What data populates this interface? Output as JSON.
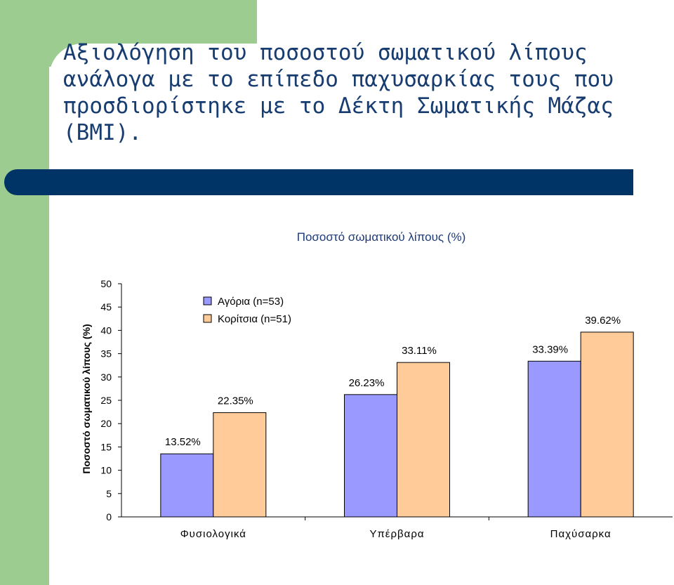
{
  "slide": {
    "title": "Αξιολόγηση του ποσοστού σωματικού λίπους ανάλογα με το επίπεδο παχυσαρκίας τους που προσδιορίστηκε με το Δέκτη Σωματικής Μάζας (BMI)."
  },
  "colors": {
    "background_strip": "#9ccc90",
    "title_text": "#173c70",
    "accent_bar": "#003366",
    "boys": "#9999ff",
    "girls": "#ffcc99"
  },
  "chart_data": {
    "type": "bar",
    "title": "Ποσοστό σωματικού λίπους (%)",
    "xlabel": "",
    "ylabel": "Ποσοστό σωματικού λίπους (%)",
    "ylim": [
      0,
      50
    ],
    "yticks": [
      0,
      5,
      10,
      15,
      20,
      25,
      30,
      35,
      40,
      45,
      50
    ],
    "categories": [
      "Φυσιολογικά",
      "Υπέρβαρα",
      "Παχύσαρκα"
    ],
    "series": [
      {
        "name": "Αγόρια (n=53)",
        "values": [
          13.52,
          26.23,
          33.39
        ],
        "labels": [
          "13.52%",
          "26.23%",
          "33.39%"
        ]
      },
      {
        "name": "Κορίτσια (n=51)",
        "values": [
          22.35,
          33.11,
          39.62
        ],
        "labels": [
          "22.35%",
          "33.11%",
          "39.62%"
        ]
      }
    ],
    "legend_position": "top-left",
    "grid": false
  }
}
